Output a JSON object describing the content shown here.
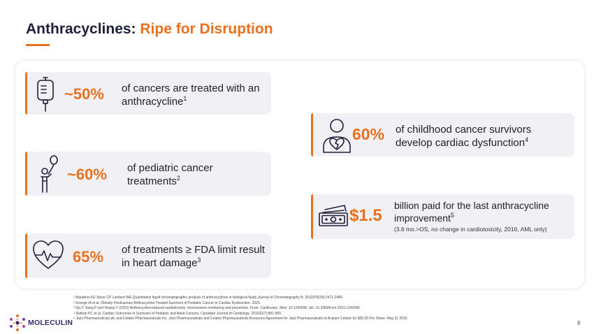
{
  "slide": {
    "title_main": "Anthracyclines: ",
    "title_accent": "Ripe for Disruption",
    "page_number": "8"
  },
  "cards": {
    "c1": {
      "stat": "~50%",
      "text": "of cancers are treated with an anthracycline",
      "sup": "1",
      "icon": "iv-bag-icon"
    },
    "c2": {
      "stat": "~60%",
      "text": "of pediatric cancer treatments",
      "sup": "2",
      "icon": "child-balloon-icon"
    },
    "c3": {
      "stat": "65%",
      "text": "of treatments ≥ FDA limit result in heart damage",
      "sup": "3",
      "icon": "heart-pulse-icon"
    },
    "c4": {
      "stat": "60%",
      "text": "of childhood cancer survivors develop cardiac dysfunction",
      "sup": "4",
      "icon": "person-broken-heart-icon"
    },
    "c5": {
      "stat": "$1.5",
      "text": "billion paid for the last anthracycline improvement",
      "sup": "5",
      "subtext": "(3.6 mo.>OS, no change in cardiotoxicity, 2016, AML only)",
      "icon": "cash-icon"
    }
  },
  "references": [
    "¹ Maudens KE Stove CP Lambert WE.Quantitative liquid chromatographic analysis of anthracyclines in biological fluids.Journal of Chromatography B. 2011879(29):2471-2486.",
    "² George IA et al. Obesity Predisposes Anthracycline-Treated Survivors of Pediatric Cancer to Cardiac Dysfunction. 2025.",
    "³ Qiu Y Jiang P and Huang Y (2023) Anthracycline-induced cardiotoxicity: mechanisms monitoring and prevention. Front. Cardiovasc. Med. 10:1242596. doi: 10.3389/fcvm.2023.1242596",
    "⁴ Nathan PC et al. Cardiac Outcomes in Survivors of Pediatric and Adult Cancers. Canadian Journal of Cardiology. 201632(7):891-900.",
    "⁵ Jazz Pharmaceuticals plc and Celator Pharmaceuticals Inc. Jazz Pharmaceuticals and Celator Pharmaceuticals Announce Agreement for Jazz Pharmaceuticals to Acquire Celator for $30.25 Per Share. May 31 2016."
  ],
  "logo": {
    "text": "MOLECULIN",
    "icon": "molecule-logo-icon"
  },
  "colors": {
    "accent": "#e8711f",
    "navy": "#1f1f3a",
    "card_bg": "#f1f0f5"
  }
}
